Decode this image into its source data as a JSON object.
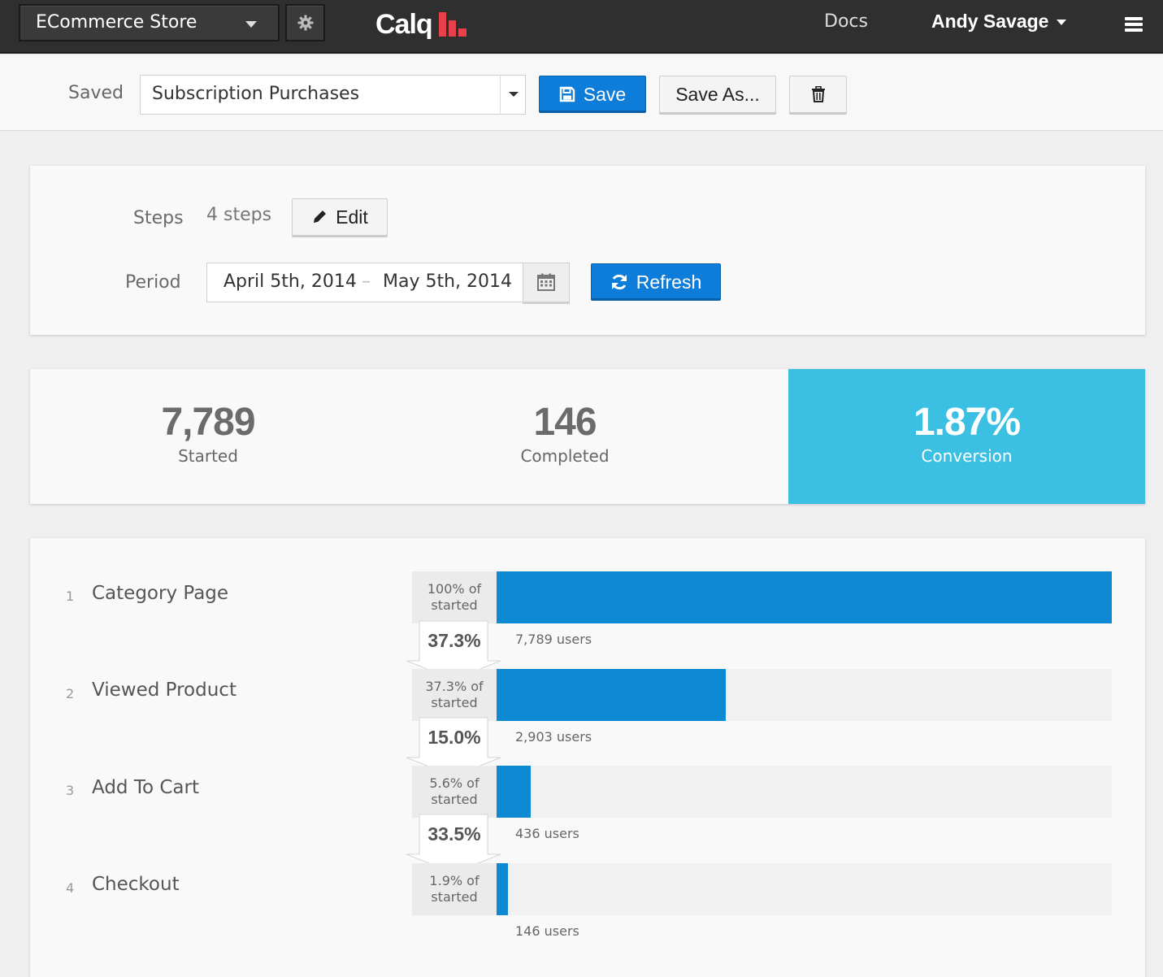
{
  "topbar": {
    "project": "ECommerce Store",
    "logo_text": "Calq",
    "docs": "Docs",
    "user": "Andy Savage"
  },
  "savedbar": {
    "label": "Saved",
    "selected": "Subscription Purchases",
    "save": "Save",
    "save_as": "Save As..."
  },
  "config": {
    "steps_label": "Steps",
    "steps_value": "4 steps",
    "edit": "Edit",
    "period_label": "Period",
    "date_start": "April 5th, 2014",
    "date_sep": "–",
    "date_end": "May 5th, 2014",
    "refresh": "Refresh"
  },
  "stats": {
    "started_value": "7,789",
    "started_label": "Started",
    "completed_value": "146",
    "completed_label": "Completed",
    "conversion_value": "1.87%",
    "conversion_label": "Conversion"
  },
  "colors": {
    "primary": "#0e7cd9",
    "bar": "#0e8ad4",
    "highlight": "#3bbfe2",
    "logo_bars": "#e8414b"
  },
  "chart_data": {
    "type": "bar",
    "categories": [
      "Category Page",
      "Viewed Product",
      "Add To Cart",
      "Checkout"
    ],
    "values": [
      7789,
      2903,
      436,
      146
    ],
    "steps": [
      {
        "num": "1",
        "name": "Category Page",
        "pct_line1": "100% of",
        "pct_line2": "started",
        "fraction": 1.0,
        "users": "7,789 users"
      },
      {
        "num": "2",
        "name": "Viewed Product",
        "pct_line1": "37.3% of",
        "pct_line2": "started",
        "fraction": 0.373,
        "users": "2,903 users"
      },
      {
        "num": "3",
        "name": "Add To Cart",
        "pct_line1": "5.6% of",
        "pct_line2": "started",
        "fraction": 0.056,
        "users": "436 users"
      },
      {
        "num": "4",
        "name": "Checkout",
        "pct_line1": "1.9% of",
        "pct_line2": "started",
        "fraction": 0.019,
        "users": "146 users"
      }
    ],
    "step_conversions": [
      "37.3%",
      "15.0%",
      "33.5%"
    ]
  }
}
